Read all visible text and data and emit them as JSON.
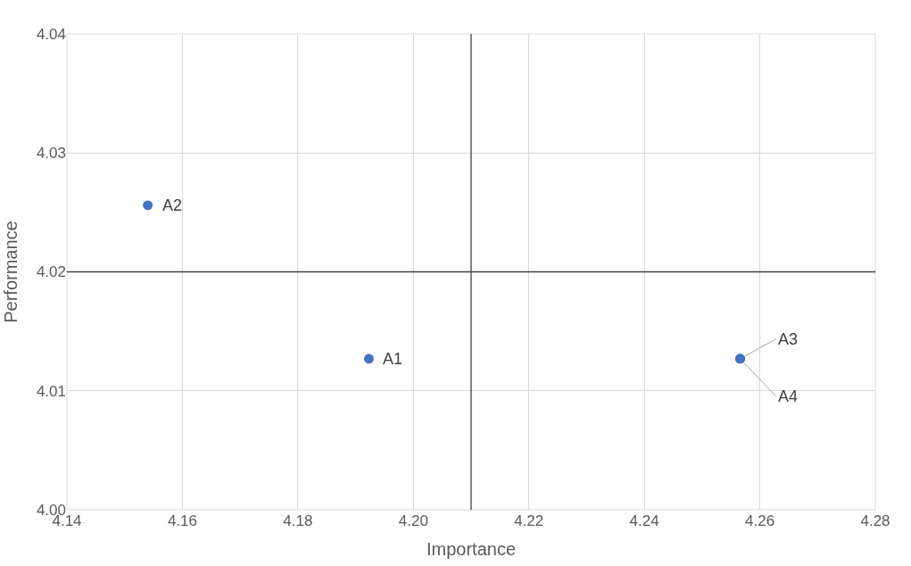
{
  "chart_data": {
    "type": "scatter",
    "xlabel": "Importance",
    "ylabel": "Performance",
    "x": [
      4.1923,
      4.154,
      4.2566,
      4.2566
    ],
    "values": [
      4.0127,
      4.0256,
      4.0127,
      4.0127
    ],
    "color": "#4472c4",
    "marker": "circle",
    "xlim": [
      4.14,
      4.28
    ],
    "xticks": [
      {
        "value": 4.14,
        "label": "4.14"
      },
      {
        "value": 4.16,
        "label": "4.16"
      },
      {
        "value": 4.18,
        "label": "4.18"
      },
      {
        "value": 4.2,
        "label": "4.20"
      },
      {
        "value": 4.22,
        "label": "4.22"
      },
      {
        "value": 4.24,
        "label": "4.24"
      },
      {
        "value": 4.26,
        "label": "4.26"
      },
      {
        "value": 4.28,
        "label": "4.28"
      }
    ],
    "ylim": [
      4.0,
      4.04
    ],
    "yticks": [
      {
        "value": 4.0,
        "label": "4.00"
      },
      {
        "value": 4.01,
        "label": "4.01"
      },
      {
        "value": 4.02,
        "label": "4.02"
      },
      {
        "value": 4.03,
        "label": "4.03"
      },
      {
        "value": 4.04,
        "label": "4.04"
      }
    ],
    "grid": true,
    "ref_lines": [
      {
        "axis": "x",
        "value": 4.21,
        "color": "#404040"
      },
      {
        "axis": "y",
        "value": 4.02,
        "color": "#404040"
      }
    ],
    "annotations": [
      {
        "text": "A1",
        "x": 4.1923,
        "y": 4.0127
      },
      {
        "text": "A2",
        "x": 4.154,
        "y": 4.0256
      },
      {
        "text": "A3",
        "x": 4.2566,
        "y": 4.0127
      },
      {
        "text": "A4",
        "x": 4.2566,
        "y": 4.0127
      }
    ]
  }
}
